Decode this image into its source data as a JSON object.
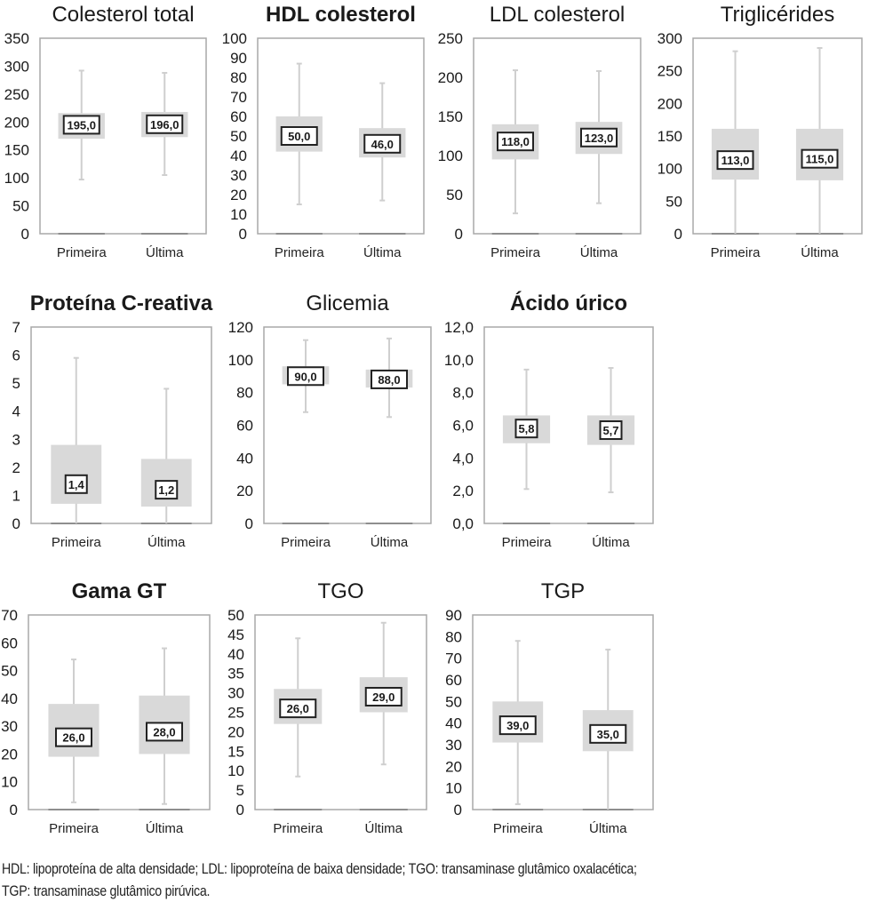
{
  "chart_data": [
    {
      "type": "boxplot",
      "title": "Colesterol total",
      "title_bold": false,
      "categories": [
        "Primeira",
        "Última"
      ],
      "yticks": [
        "0",
        "50",
        "100",
        "150",
        "200",
        "250",
        "300",
        "350"
      ],
      "ylim": [
        0,
        350
      ],
      "series": [
        {
          "name": "Primeira",
          "min": 97,
          "q1": 170,
          "median": 195.0,
          "q3": 216,
          "max": 292,
          "label": "195,0"
        },
        {
          "name": "Última",
          "min": 105,
          "q1": 173,
          "median": 196.0,
          "q3": 218,
          "max": 288,
          "label": "196,0"
        }
      ]
    },
    {
      "type": "boxplot",
      "title": "HDL colesterol",
      "title_bold": true,
      "categories": [
        "Primeira",
        "Última"
      ],
      "yticks": [
        "0",
        "10",
        "20",
        "30",
        "40",
        "50",
        "60",
        "70",
        "80",
        "90",
        "100"
      ],
      "ylim": [
        0,
        100
      ],
      "series": [
        {
          "name": "Primeira",
          "min": 15,
          "q1": 42,
          "median": 50.0,
          "q3": 60,
          "max": 87,
          "label": "50,0"
        },
        {
          "name": "Última",
          "min": 17,
          "q1": 39,
          "median": 46.0,
          "q3": 54,
          "max": 77,
          "label": "46,0"
        }
      ]
    },
    {
      "type": "boxplot",
      "title": "LDL colesterol",
      "title_bold": false,
      "categories": [
        "Primeira",
        "Última"
      ],
      "yticks": [
        "0",
        "50",
        "100",
        "150",
        "200",
        "250"
      ],
      "ylim": [
        0,
        250
      ],
      "series": [
        {
          "name": "Primeira",
          "min": 26,
          "q1": 95,
          "median": 118.0,
          "q3": 140,
          "max": 209,
          "label": "118,0"
        },
        {
          "name": "Última",
          "min": 39,
          "q1": 102,
          "median": 123.0,
          "q3": 143,
          "max": 208,
          "label": "123,0"
        }
      ]
    },
    {
      "type": "boxplot",
      "title": "Triglicérides",
      "title_bold": false,
      "categories": [
        "Primeira",
        "Última"
      ],
      "yticks": [
        "0",
        "50",
        "100",
        "150",
        "200",
        "250",
        "300"
      ],
      "ylim": [
        0,
        300
      ],
      "series": [
        {
          "name": "Primeira",
          "min": 0,
          "q1": 83,
          "median": 113.0,
          "q3": 161,
          "max": 280,
          "label": "113,0"
        },
        {
          "name": "Última",
          "min": 0,
          "q1": 82,
          "median": 115.0,
          "q3": 161,
          "max": 285,
          "label": "115,0"
        }
      ]
    },
    {
      "type": "boxplot",
      "title": "Proteína C-reativa",
      "title_bold": true,
      "categories": [
        "Primeira",
        "Última"
      ],
      "yticks": [
        "0",
        "1",
        "2",
        "3",
        "4",
        "5",
        "6",
        "7"
      ],
      "ylim": [
        0,
        7
      ],
      "series": [
        {
          "name": "Primeira",
          "min": 0,
          "q1": 0.7,
          "median": 1.4,
          "q3": 2.8,
          "max": 5.9,
          "label": "1,4"
        },
        {
          "name": "Última",
          "min": 0,
          "q1": 0.6,
          "median": 1.2,
          "q3": 2.3,
          "max": 4.8,
          "label": "1,2"
        }
      ]
    },
    {
      "type": "boxplot",
      "title": "Glicemia",
      "title_bold": false,
      "categories": [
        "Primeira",
        "Última"
      ],
      "yticks": [
        "0",
        "20",
        "40",
        "60",
        "80",
        "100",
        "120"
      ],
      "ylim": [
        0,
        120
      ],
      "series": [
        {
          "name": "Primeira",
          "min": 68,
          "q1": 85,
          "median": 90.0,
          "q3": 96,
          "max": 112,
          "label": "90,0"
        },
        {
          "name": "Última",
          "min": 65,
          "q1": 83,
          "median": 88.0,
          "q3": 94,
          "max": 113,
          "label": "88,0"
        }
      ]
    },
    {
      "type": "boxplot",
      "title": "Ácido úrico",
      "title_bold": true,
      "categories": [
        "Primeira",
        "Última"
      ],
      "yticks": [
        "0,0",
        "2,0",
        "4,0",
        "6,0",
        "8,0",
        "10,0",
        "12,0"
      ],
      "ylim": [
        0,
        12
      ],
      "series": [
        {
          "name": "Primeira",
          "min": 2.1,
          "q1": 4.9,
          "median": 5.8,
          "q3": 6.6,
          "max": 9.4,
          "label": "5,8"
        },
        {
          "name": "Última",
          "min": 1.9,
          "q1": 4.8,
          "median": 5.7,
          "q3": 6.6,
          "max": 9.5,
          "label": "5,7"
        }
      ]
    },
    {
      "type": "boxplot",
      "title": "Gama GT",
      "title_bold": true,
      "categories": [
        "Primeira",
        "Última"
      ],
      "yticks": [
        "0",
        "10",
        "20",
        "30",
        "40",
        "50",
        "60",
        "70"
      ],
      "ylim": [
        0,
        70
      ],
      "series": [
        {
          "name": "Primeira",
          "min": 2.6,
          "q1": 19,
          "median": 26.0,
          "q3": 38,
          "max": 54,
          "label": "26,0"
        },
        {
          "name": "Última",
          "min": 2,
          "q1": 20,
          "median": 28.0,
          "q3": 41,
          "max": 58,
          "label": "28,0"
        }
      ]
    },
    {
      "type": "boxplot",
      "title": "TGO",
      "title_bold": false,
      "categories": [
        "Primeira",
        "Última"
      ],
      "yticks": [
        "0",
        "5",
        "10",
        "15",
        "20",
        "25",
        "30",
        "35",
        "40",
        "45",
        "50"
      ],
      "ylim": [
        0,
        50
      ],
      "series": [
        {
          "name": "Primeira",
          "min": 8.5,
          "q1": 22,
          "median": 26.0,
          "q3": 31,
          "max": 44,
          "label": "26,0"
        },
        {
          "name": "Última",
          "min": 11.6,
          "q1": 25,
          "median": 29.0,
          "q3": 34,
          "max": 48,
          "label": "29,0"
        }
      ]
    },
    {
      "type": "boxplot",
      "title": "TGP",
      "title_bold": false,
      "categories": [
        "Primeira",
        "Última"
      ],
      "yticks": [
        "0",
        "10",
        "20",
        "30",
        "40",
        "50",
        "60",
        "70",
        "80",
        "90"
      ],
      "ylim": [
        0,
        90
      ],
      "series": [
        {
          "name": "Primeira",
          "min": 2.5,
          "q1": 31,
          "median": 39.0,
          "q3": 50,
          "max": 78,
          "label": "39,0"
        },
        {
          "name": "Última",
          "min": 0,
          "q1": 27,
          "median": 35.0,
          "q3": 46,
          "max": 74,
          "label": "35,0"
        }
      ]
    }
  ],
  "colors": {
    "box_fill": "#d9d9d9",
    "whisker": "#cfcfcf",
    "frame": "#a8a8a8",
    "label_border": "#222222",
    "text": "#1a1a1a"
  },
  "footnote": {
    "line1": "HDL: lipoproteína de alta densidade; LDL: lipoproteína de baixa densidade; TGO: transaminase glutâmico oxalacética;",
    "line2": "TGP: transaminase glutâmico pirúvica."
  }
}
